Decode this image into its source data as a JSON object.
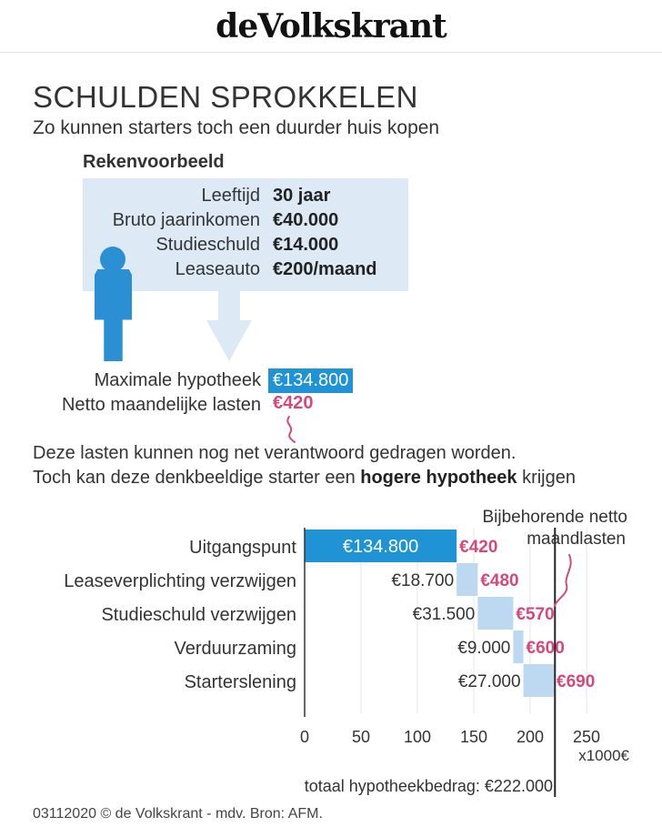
{
  "masthead": {
    "logo_text": "deVolkskrant"
  },
  "header": {
    "title": "SCHULDEN SPROKKELEN",
    "subtitle": "Zo kunnen starters toch een duurder huis kopen"
  },
  "rekenvoorbeeld": {
    "title": "Rekenvoorbeeld",
    "rows": [
      {
        "label": "Leeftijd",
        "value": "30 jaar"
      },
      {
        "label": "Bruto jaarinkomen",
        "value": "€40.000"
      },
      {
        "label": "Studieschuld",
        "value": "€14.000"
      },
      {
        "label": "Leaseauto",
        "value": "€200/maand"
      }
    ],
    "max_hypotheek_label": "Maximale hypotheek",
    "max_hypotheek_value": "€134.800",
    "netto_label": "Netto maandelijke lasten",
    "netto_value": "€420"
  },
  "body": {
    "line1": "Deze lasten kunnen nog net verantwoord gedragen worden.",
    "line2_pre": "Toch kan deze denkbeeldige starter een ",
    "line2_bold": "hogere hypotheek",
    "line2_post": " krijgen"
  },
  "colors": {
    "accent_blue": "#1f93d6",
    "light_blue": "#bcd9f1",
    "box_blue": "#ddeaf6",
    "pink": "#d4487c"
  },
  "chart_data": {
    "type": "bar",
    "subtype": "waterfall-horizontal",
    "annotation_top": [
      "Bijbehorende netto",
      "maandlasten"
    ],
    "categories": [
      "Uitgangspunt",
      "Leaseverplichting verzwijgen",
      "Studieschuld verzwijgen",
      "Verduurzaming",
      "Starterslening"
    ],
    "values": [
      134.8,
      18.7,
      31.5,
      9.0,
      27.0
    ],
    "value_labels": [
      "€134.800",
      "€18.700",
      "€31.500",
      "€9.000",
      "€27.000"
    ],
    "monthly_labels": [
      "€420",
      "€480",
      "€570",
      "€600",
      "€690"
    ],
    "xlim": [
      0,
      250
    ],
    "xticks": [
      0,
      50,
      100,
      150,
      200,
      250
    ],
    "xunit": "x1000€",
    "total_value": 222,
    "total_label": "totaal hypotheekbedrag: €222.000",
    "grid": true
  },
  "footer": {
    "text": "03112020 © de Volkskrant - mdv. Bron: AFM."
  }
}
